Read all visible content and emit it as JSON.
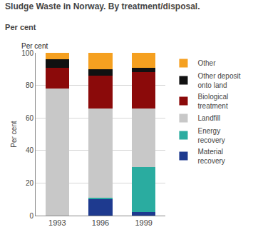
{
  "chart_data": {
    "type": "bar",
    "title": "Sludge Waste in Norway. By treatment/disposal.",
    "subtitle": "Per cent",
    "ylabel": "Per cent",
    "annotations": [
      {
        "text": "Per cent"
      }
    ],
    "categories": [
      "1993",
      "1996",
      "1999"
    ],
    "series": [
      {
        "name": "Material\nrecovery",
        "color": "#1e3a8f",
        "values": [
          0,
          10,
          2
        ]
      },
      {
        "name": "Energy\nrecovery",
        "color": "#2aaca0",
        "values": [
          0,
          1,
          28
        ]
      },
      {
        "name": "Landfill",
        "color": "#c8c8c8",
        "values": [
          78,
          55,
          36
        ]
      },
      {
        "name": "Biological\ntreatment",
        "color": "#8b0a0a",
        "values": [
          13,
          20,
          22
        ]
      },
      {
        "name": "Other deposit\nonto land",
        "color": "#111111",
        "values": [
          5,
          4,
          3
        ]
      },
      {
        "name": "Other",
        "color": "#f5a020",
        "values": [
          4,
          10,
          9
        ]
      }
    ],
    "stacked": true,
    "ylim": [
      0,
      100
    ],
    "yticks": [
      0,
      20,
      40,
      60,
      80,
      100
    ],
    "grid": true,
    "legend": "upper right"
  }
}
